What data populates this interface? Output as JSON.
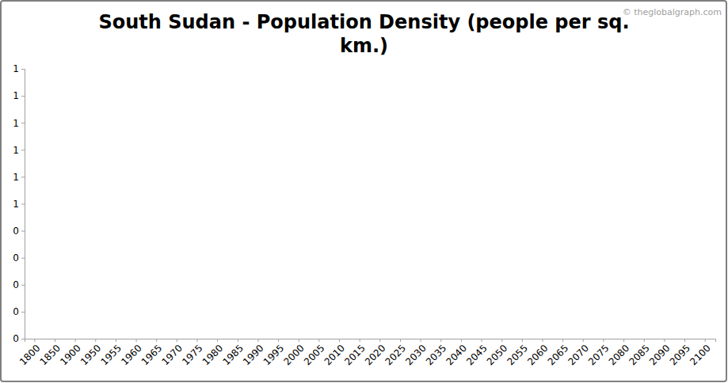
{
  "chart_data": {
    "type": "line",
    "title": "South Sudan - Population Density (people per sq. km.)",
    "annotations": [
      "© theglobalgraph.com"
    ],
    "categories": [
      "1800",
      "1850",
      "1900",
      "1950",
      "1955",
      "1960",
      "1965",
      "1970",
      "1975",
      "1980",
      "1985",
      "1990",
      "1995",
      "2000",
      "2005",
      "2010",
      "2015",
      "2020",
      "2025",
      "2030",
      "2035",
      "2040",
      "2045",
      "2050",
      "2055",
      "2060",
      "2065",
      "2070",
      "2075",
      "2080",
      "2085",
      "2090",
      "2095",
      "2100"
    ],
    "values": [
      null,
      null,
      null,
      null,
      null,
      null,
      null,
      null,
      null,
      null,
      null,
      null,
      null,
      null,
      null,
      null,
      null,
      null,
      null,
      null,
      null,
      null,
      null,
      null,
      null,
      null,
      null,
      null,
      null,
      null,
      null,
      null,
      null,
      null
    ],
    "color": "#1f5fa8",
    "ylim": [
      0,
      1
    ],
    "yticks": [
      0,
      {
        "value": 0.1,
        "label": "0"
      },
      {
        "value": 0.2,
        "label": "0"
      },
      {
        "value": 0.3,
        "label": "0"
      },
      {
        "value": 0.4,
        "label": "0"
      },
      {
        "value": 0.5,
        "label": "1"
      },
      {
        "value": 0.6,
        "label": "1"
      },
      {
        "value": 0.7,
        "label": "1"
      },
      {
        "value": 0.8,
        "label": "1"
      },
      {
        "value": 0.9,
        "label": "1"
      },
      1
    ],
    "grid": false
  }
}
